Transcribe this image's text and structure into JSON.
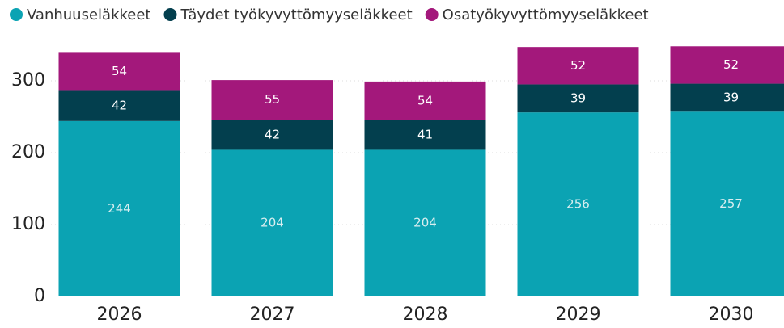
{
  "chart_data": {
    "type": "stacked_bar",
    "categories": [
      "2026",
      "2027",
      "2028",
      "2029",
      "2030"
    ],
    "series": [
      {
        "name": "Vanhuuseläkkeet",
        "color": "#0ba3b3",
        "values": [
          244,
          204,
          204,
          256,
          257
        ]
      },
      {
        "name": "Täydet työkyvyttömyyseläkkeet",
        "color": "#033f4e",
        "values": [
          42,
          42,
          41,
          39,
          39
        ]
      },
      {
        "name": "Osatyökyvyttömyyseläkkeet",
        "color": "#a3187b",
        "values": [
          54,
          55,
          54,
          52,
          52
        ]
      }
    ],
    "ylim": [
      0,
      350
    ],
    "yticks": [
      0,
      100,
      200,
      300
    ],
    "grid": true,
    "legend": "top"
  }
}
